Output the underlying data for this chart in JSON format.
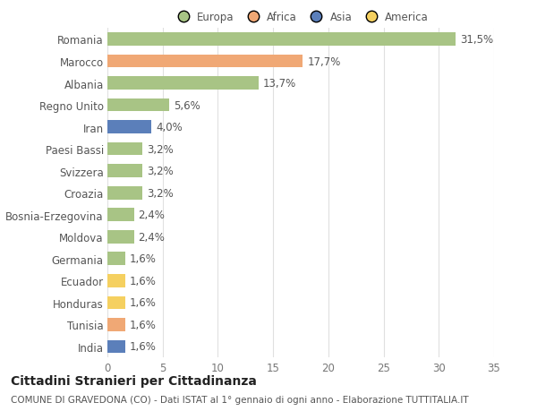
{
  "categories": [
    "Romania",
    "Marocco",
    "Albania",
    "Regno Unito",
    "Iran",
    "Paesi Bassi",
    "Svizzera",
    "Croazia",
    "Bosnia-Erzegovina",
    "Moldova",
    "Germania",
    "Ecuador",
    "Honduras",
    "Tunisia",
    "India"
  ],
  "values": [
    31.5,
    17.7,
    13.7,
    5.6,
    4.0,
    3.2,
    3.2,
    3.2,
    2.4,
    2.4,
    1.6,
    1.6,
    1.6,
    1.6,
    1.6
  ],
  "labels": [
    "31,5%",
    "17,7%",
    "13,7%",
    "5,6%",
    "4,0%",
    "3,2%",
    "3,2%",
    "3,2%",
    "2,4%",
    "2,4%",
    "1,6%",
    "1,6%",
    "1,6%",
    "1,6%",
    "1,6%"
  ],
  "colors": [
    "#a8c485",
    "#f0a875",
    "#a8c485",
    "#a8c485",
    "#5b7fba",
    "#a8c485",
    "#a8c485",
    "#a8c485",
    "#a8c485",
    "#a8c485",
    "#a8c485",
    "#f5d060",
    "#f5d060",
    "#f0a875",
    "#5b7fba"
  ],
  "legend_labels": [
    "Europa",
    "Africa",
    "Asia",
    "America"
  ],
  "legend_colors": [
    "#a8c485",
    "#f0a875",
    "#5b7fba",
    "#f5d060"
  ],
  "title": "Cittadini Stranieri per Cittadinanza",
  "subtitle": "COMUNE DI GRAVEDONA (CO) - Dati ISTAT al 1° gennaio di ogni anno - Elaborazione TUTTITALIA.IT",
  "xlim": [
    0,
    35
  ],
  "xticks": [
    0,
    5,
    10,
    15,
    20,
    25,
    30,
    35
  ],
  "background_color": "#ffffff",
  "grid_color": "#e0e0e0",
  "bar_height": 0.6,
  "label_fontsize": 8.5,
  "tick_fontsize": 8.5,
  "title_fontsize": 10,
  "subtitle_fontsize": 7.5
}
